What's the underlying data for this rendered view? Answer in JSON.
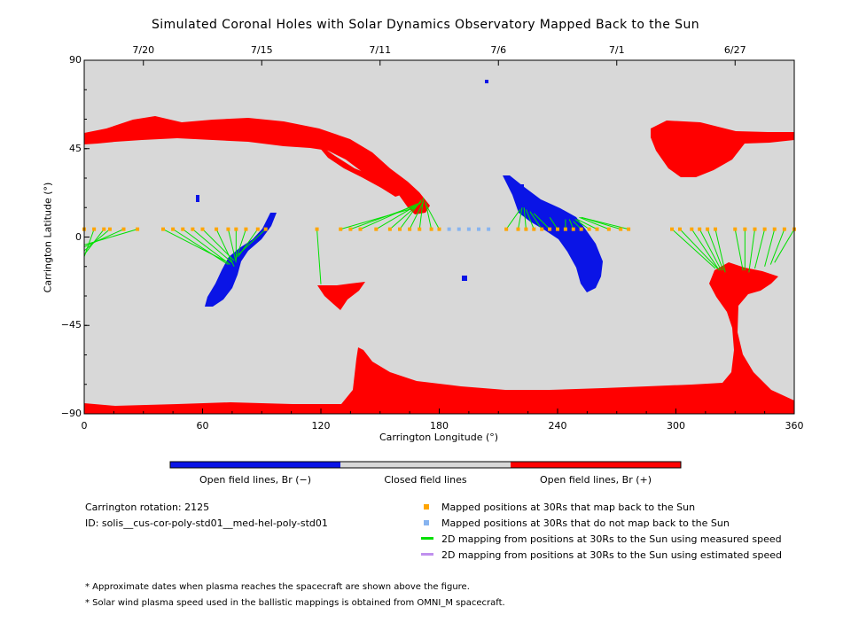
{
  "chart_data": {
    "type": "map",
    "title": "Simulated Coronal Holes with Solar Dynamics Observatory Mapped Back to the Sun",
    "xlabel": "Carrington Longitude (°)",
    "ylabel": "Carrington Latitude (°)",
    "xlim": [
      0,
      360
    ],
    "ylim": [
      -90,
      90
    ],
    "x_ticks": [
      "0",
      "60",
      "120",
      "180",
      "240",
      "300",
      "360"
    ],
    "y_ticks": [
      "90",
      "45",
      "0",
      "−45",
      "−90"
    ],
    "top_axis_dates": [
      {
        "label": "7/20",
        "lon": 30
      },
      {
        "label": "7/15",
        "lon": 90
      },
      {
        "label": "7/11",
        "lon": 150
      },
      {
        "label": "7/6",
        "lon": 210
      },
      {
        "label": "7/1",
        "lon": 270
      },
      {
        "label": "6/27",
        "lon": 330
      }
    ],
    "colorbar": [
      {
        "label": "Open field lines, Br (−)",
        "color": "#0a14e6"
      },
      {
        "label": "Closed field lines",
        "color": "#d8d8d8"
      },
      {
        "label": "Open field lines, Br (+)",
        "color": "#ff0000"
      }
    ],
    "mapped_positions_lat": 4,
    "footpoints": [
      {
        "lon": 0,
        "targets": [
          [
            0,
            -13
          ],
          [
            0,
            -10
          ]
        ]
      },
      {
        "lon": 5,
        "targets": [
          [
            0,
            -10
          ]
        ]
      },
      {
        "lon": 10,
        "targets": [
          [
            0,
            -9
          ]
        ]
      },
      {
        "lon": 13,
        "targets": [
          [
            0,
            -7
          ]
        ]
      },
      {
        "lon": 20,
        "targets": [
          [
            0,
            -5
          ]
        ]
      },
      {
        "lon": 27,
        "targets": [
          [
            0,
            -4
          ]
        ]
      },
      {
        "lon": 40,
        "targets": [
          [
            73,
            -13
          ]
        ]
      },
      {
        "lon": 45,
        "targets": [
          [
            73,
            -14
          ]
        ]
      },
      {
        "lon": 50,
        "targets": [
          [
            74,
            -14
          ]
        ]
      },
      {
        "lon": 55,
        "targets": [
          [
            75,
            -13
          ]
        ]
      },
      {
        "lon": 60,
        "targets": [
          [
            76,
            -12
          ]
        ]
      },
      {
        "lon": 67,
        "targets": [
          [
            76,
            -15
          ]
        ]
      },
      {
        "lon": 73,
        "targets": [
          [
            77,
            -13
          ]
        ]
      },
      {
        "lon": 77,
        "targets": [
          [
            77,
            -12
          ]
        ]
      },
      {
        "lon": 82,
        "targets": [
          [
            77,
            -11
          ]
        ]
      },
      {
        "lon": 88,
        "targets": [
          [
            78,
            -10
          ]
        ]
      },
      {
        "lon": 92,
        "targets": [
          [
            78,
            -9
          ]
        ]
      },
      {
        "lon": 118,
        "targets": [
          [
            120,
            -24
          ]
        ]
      },
      {
        "lon": 130,
        "targets": [
          [
            168,
            15
          ]
        ]
      },
      {
        "lon": 135,
        "targets": [
          [
            168,
            16
          ]
        ]
      },
      {
        "lon": 140,
        "targets": [
          [
            169,
            17
          ]
        ]
      },
      {
        "lon": 148,
        "targets": [
          [
            170,
            17
          ]
        ]
      },
      {
        "lon": 155,
        "targets": [
          [
            171,
            18
          ]
        ]
      },
      {
        "lon": 160,
        "targets": [
          [
            171,
            19
          ]
        ]
      },
      {
        "lon": 165,
        "targets": [
          [
            172,
            18
          ]
        ]
      },
      {
        "lon": 170,
        "targets": [
          [
            172,
            20
          ]
        ]
      },
      {
        "lon": 176,
        "targets": [
          [
            173,
            18
          ]
        ]
      },
      {
        "lon": 180,
        "targets": [
          [
            173,
            17
          ]
        ]
      },
      {
        "lon": 214,
        "targets": [
          [
            221,
            14
          ]
        ]
      },
      {
        "lon": 220,
        "targets": [
          [
            222,
            15
          ]
        ]
      },
      {
        "lon": 224,
        "targets": [
          [
            223,
            15
          ]
        ]
      },
      {
        "lon": 228,
        "targets": [
          [
            224,
            14
          ]
        ]
      },
      {
        "lon": 232,
        "targets": [
          [
            226,
            13
          ]
        ]
      },
      {
        "lon": 236,
        "targets": [
          [
            228,
            12
          ]
        ]
      },
      {
        "lon": 240,
        "targets": [
          [
            236,
            10
          ]
        ]
      },
      {
        "lon": 244,
        "targets": [
          [
            244,
            9
          ]
        ]
      },
      {
        "lon": 248,
        "targets": [
          [
            246,
            9
          ]
        ]
      },
      {
        "lon": 252,
        "targets": [
          [
            248,
            8
          ]
        ]
      },
      {
        "lon": 256,
        "targets": [
          [
            249,
            9
          ]
        ]
      },
      {
        "lon": 260,
        "targets": [
          [
            250,
            9
          ]
        ]
      },
      {
        "lon": 266,
        "targets": [
          [
            251,
            10
          ]
        ]
      },
      {
        "lon": 272,
        "targets": [
          [
            252,
            10
          ]
        ]
      },
      {
        "lon": 276,
        "targets": [
          [
            252,
            10
          ]
        ]
      },
      {
        "lon": 298,
        "targets": [
          [
            320,
            -16
          ]
        ]
      },
      {
        "lon": 302,
        "targets": [
          [
            321,
            -16
          ]
        ]
      },
      {
        "lon": 308,
        "targets": [
          [
            322,
            -17
          ]
        ]
      },
      {
        "lon": 312,
        "targets": [
          [
            323,
            -17
          ]
        ]
      },
      {
        "lon": 316,
        "targets": [
          [
            324,
            -17
          ]
        ]
      },
      {
        "lon": 320,
        "targets": [
          [
            325,
            -18
          ]
        ]
      },
      {
        "lon": 330,
        "targets": [
          [
            334,
            -17
          ]
        ]
      },
      {
        "lon": 335,
        "targets": [
          [
            335,
            -17
          ]
        ]
      },
      {
        "lon": 340,
        "targets": [
          [
            337,
            -18
          ]
        ]
      },
      {
        "lon": 345,
        "targets": [
          [
            340,
            -16
          ]
        ]
      },
      {
        "lon": 350,
        "targets": [
          [
            345,
            -15
          ]
        ]
      },
      {
        "lon": 355,
        "targets": [
          [
            348,
            -14
          ]
        ]
      },
      {
        "lon": 360,
        "targets": [
          [
            350,
            -13
          ]
        ]
      }
    ],
    "non_mapping_positions_lon": [
      185,
      190,
      195,
      200,
      205
    ],
    "legend": [
      {
        "label": "Mapped positions at 30Rs that map back to the Sun",
        "color": "#ffa500",
        "kind": "square"
      },
      {
        "label": "Mapped positions at 30Rs that do not map back to the Sun",
        "color": "#87b4f0",
        "kind": "square"
      },
      {
        "label": "2D mapping from positions at 30Rs to the Sun using measured speed",
        "color": "#00e000",
        "kind": "line"
      },
      {
        "label": "2D mapping from positions at 30Rs to the Sun using estimated speed",
        "color": "#c090ee",
        "kind": "line"
      }
    ],
    "info": {
      "rotation": "Carrington rotation: 2125",
      "id": "ID: solis__cus-cor-poly-std01__med-hel-poly-std01"
    },
    "notes": [
      "* Approximate dates when plasma reaches the spacecraft are shown above the figure.",
      "* Solar wind plasma speed used in the ballistic mappings is obtained from OMNI_M spacecraft."
    ]
  }
}
